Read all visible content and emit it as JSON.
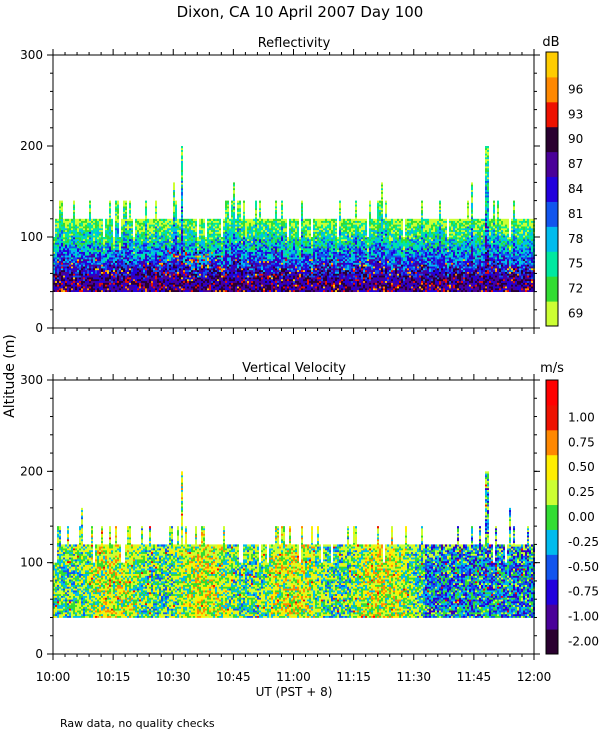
{
  "figure": {
    "title": "Dixon, CA 10 April 2007  Day 100",
    "ylabel": "Altitude (m)",
    "xlabel": "UT  (PST + 8)",
    "footnote": "Raw data, no quality checks",
    "xticks": [
      "10:00",
      "10:15",
      "10:30",
      "10:45",
      "11:00",
      "11:15",
      "11:30",
      "11:45",
      "12:00"
    ]
  },
  "chart_data": [
    {
      "type": "heatmap",
      "title": "Reflectivity",
      "x_range": [
        "10:00",
        "12:00"
      ],
      "ylim": [
        0,
        300
      ],
      "yticks": [
        0,
        100,
        200,
        300
      ],
      "data_extent_altitude_m": [
        40,
        140
      ],
      "max_echo_altitude_m": 200,
      "colorbar": {
        "unit": "dB",
        "levels": [
          69,
          72,
          75,
          78,
          81,
          84,
          87,
          90,
          93,
          96
        ],
        "tick_labels": [
          "69",
          "72",
          "75",
          "78",
          "81",
          "84",
          "87",
          "90",
          "93",
          "96"
        ],
        "colors": [
          "#ccff33",
          "#33dd33",
          "#00e8a0",
          "#00bbee",
          "#1155ee",
          "#2200dd",
          "#4a0099",
          "#2a0030",
          "#ee1100",
          "#ff8800",
          "#ffcc00"
        ]
      }
    },
    {
      "type": "heatmap",
      "title": "Vertical Velocity",
      "x_range": [
        "10:00",
        "12:00"
      ],
      "ylim": [
        0,
        300
      ],
      "yticks": [
        0,
        100,
        200,
        300
      ],
      "data_extent_altitude_m": [
        40,
        140
      ],
      "max_echo_altitude_m": 200,
      "colorbar": {
        "unit": "m/s",
        "levels": [
          -2.0,
          -1.0,
          -0.75,
          -0.5,
          -0.25,
          0.0,
          0.25,
          0.5,
          0.75,
          1.0
        ],
        "tick_labels": [
          "-2.00",
          "-1.00",
          "-0.75",
          "-0.50",
          "-0.25",
          "0.00",
          "0.25",
          "0.50",
          "0.75",
          "1.00"
        ],
        "colors": [
          "#2a0030",
          "#4a0099",
          "#2200dd",
          "#1155ee",
          "#00bbee",
          "#33dd33",
          "#ccff33",
          "#ffee00",
          "#ff8800",
          "#ee1100",
          "#ff0000"
        ]
      }
    }
  ]
}
